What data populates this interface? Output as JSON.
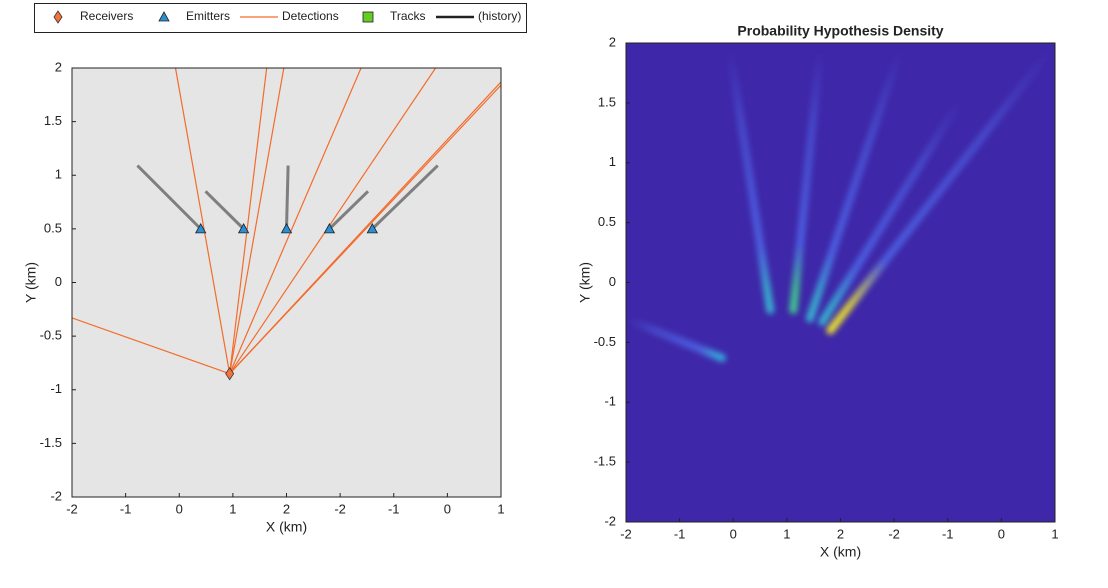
{
  "chart_data": [
    {
      "type": "tracks",
      "xlabel": "X (km)",
      "ylabel": "Y (km)",
      "xlim": [
        -2,
        6
      ],
      "ylim": [
        -2,
        2
      ],
      "xticks": [
        -2,
        -1,
        0,
        1,
        2,
        {
          "value": 3,
          "label": "-2"
        },
        {
          "value": 4,
          "label": "-1"
        },
        {
          "value": 5,
          "label": "0"
        },
        {
          "value": 6,
          "label": "1"
        }
      ],
      "yticks": [
        -2,
        -1.5,
        -1,
        -0.5,
        0,
        0.5,
        1,
        1.5,
        2
      ],
      "background": "#e5e5e5",
      "series": [
        {
          "name": "Receivers",
          "color": "#f4733a",
          "marker": "diamond",
          "x": [
            0.94
          ],
          "y": [
            -0.85
          ]
        },
        {
          "name": "Emitters",
          "color": "#2b8fd6",
          "marker": "triangle",
          "x": [
            0.4,
            1.2,
            2.0,
            2.8,
            3.6
          ],
          "y": [
            0.5,
            0.5,
            0.5,
            0.5,
            0.5
          ]
        },
        {
          "name": "Detections",
          "color": "#f36c2c",
          "marker": "line",
          "segments": [
            {
              "x": [
                0.94,
                -0.07
              ],
              "y": [
                -0.85,
                2
              ]
            },
            {
              "x": [
                0.94,
                1.63
              ],
              "y": [
                -0.85,
                2
              ]
            },
            {
              "x": [
                0.94,
                1.95
              ],
              "y": [
                -0.85,
                2
              ]
            },
            {
              "x": [
                0.94,
                3.39
              ],
              "y": [
                -0.85,
                2
              ]
            },
            {
              "x": [
                0.94,
                4.78
              ],
              "y": [
                -0.85,
                2
              ]
            },
            {
              "x": [
                0.94,
                6
              ],
              "y": [
                -0.85,
                1.87
              ]
            },
            {
              "x": [
                0.94,
                6
              ],
              "y": [
                -0.85,
                1.84
              ]
            },
            {
              "x": [
                0.94,
                -2
              ],
              "y": [
                -0.85,
                -0.33
              ]
            }
          ]
        },
        {
          "name": "Tracks",
          "color": "#66cc22",
          "marker": "square",
          "x": [],
          "y": []
        },
        {
          "name": "(history)",
          "color": "#7f7f7f",
          "legend_color": "#222222",
          "marker": "line",
          "segments": [
            {
              "x": [
                -0.78,
                0.4
              ],
              "y": [
                1.09,
                0.5
              ]
            },
            {
              "x": [
                0.49,
                1.2
              ],
              "y": [
                0.85,
                0.5
              ]
            },
            {
              "x": [
                2.03,
                2.0
              ],
              "y": [
                1.09,
                0.5
              ]
            },
            {
              "x": [
                3.52,
                2.8
              ],
              "y": [
                0.85,
                0.5
              ]
            },
            {
              "x": [
                4.82,
                3.6
              ],
              "y": [
                1.09,
                0.5
              ]
            }
          ]
        }
      ]
    },
    {
      "type": "density",
      "title": "Probability Hypothesis Density",
      "xlabel": "X (km)",
      "ylabel": "Y (km)",
      "xlim": [
        -2,
        6
      ],
      "ylim": [
        -2,
        2
      ],
      "xticks": [
        -2,
        -1,
        0,
        1,
        2,
        {
          "value": 3,
          "label": "-2"
        },
        {
          "value": 4,
          "label": "-1"
        },
        {
          "value": 5,
          "label": "0"
        },
        {
          "value": 6,
          "label": "1"
        }
      ],
      "yticks": [
        -2,
        -1.5,
        -1,
        -0.5,
        0,
        0.5,
        1,
        1.5,
        2
      ],
      "background": "#3e27a8",
      "streak_color": "#4e63e6",
      "streaks": [
        {
          "x": [
            0.69,
            -0.06
          ],
          "y": [
            -0.23,
            1.94
          ],
          "tip_color": "#38b0d0"
        },
        {
          "x": [
            1.12,
            1.62
          ],
          "y": [
            -0.23,
            1.94
          ],
          "tip_color": "#40c890"
        },
        {
          "x": [
            1.43,
            3.11
          ],
          "y": [
            -0.3,
            1.94
          ],
          "tip_color": "#38b0d0"
        },
        {
          "x": [
            1.66,
            4.23
          ],
          "y": [
            -0.33,
            1.52
          ],
          "tip_color": "#38b0d0"
        },
        {
          "x": [
            1.81,
            5.91
          ],
          "y": [
            -0.4,
            1.94
          ],
          "tip_color": "#e8e030"
        },
        {
          "x": [
            -0.21,
            -1.96
          ],
          "y": [
            -0.63,
            -0.31
          ],
          "tip_color": "#38a8e0"
        }
      ]
    }
  ]
}
